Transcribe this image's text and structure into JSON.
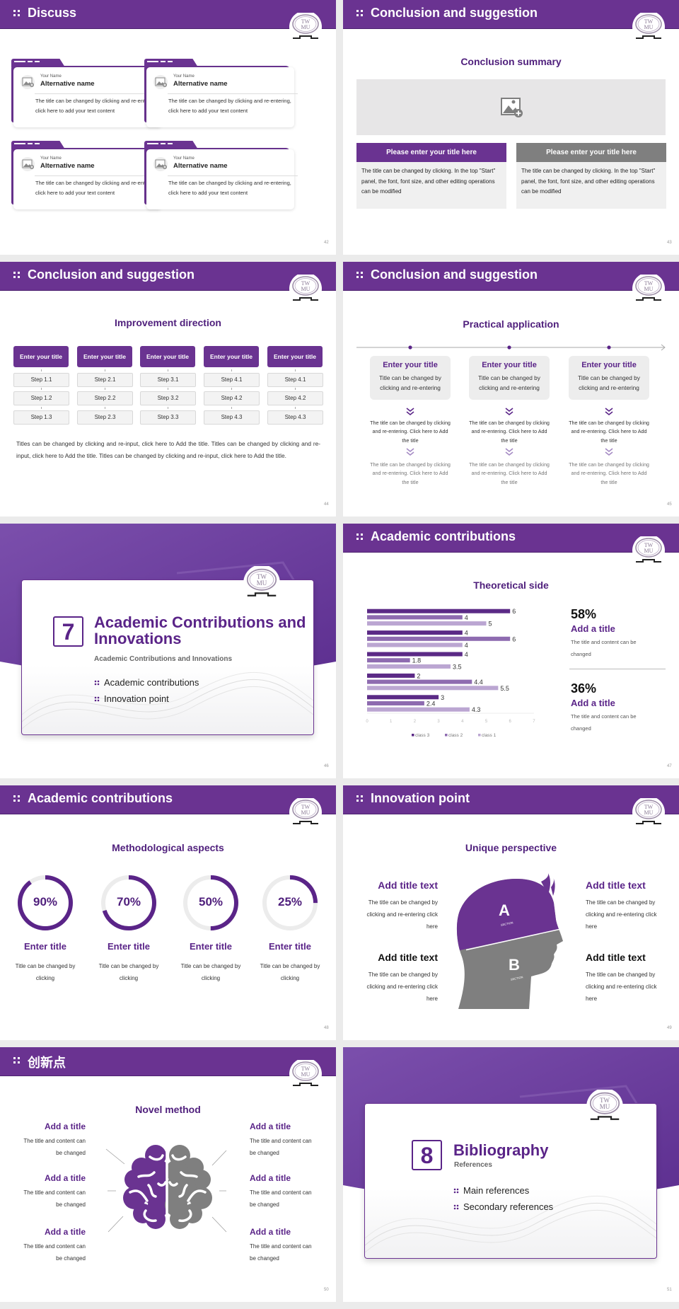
{
  "brand": {
    "logo_text_top": "TW",
    "logo_text_bottom": "MU",
    "colors": {
      "primary": "#6a3391",
      "dark": "#4f1f7c",
      "gray": "#7f7f7f",
      "light": "#f0f0f0"
    }
  },
  "s42": {
    "title": "Discuss",
    "page": "42",
    "cards": [
      {
        "label": "Your Name",
        "name": "Alternative name",
        "text": "The title can be changed by clicking and re-entering, click here to add your text content"
      },
      {
        "label": "Your Name",
        "name": "Alternative name",
        "text": "The title can be changed by clicking and re-entering, click here to add your text content"
      },
      {
        "label": "Your Name",
        "name": "Alternative name",
        "text": "The title can be changed by clicking and re-entering, click here to add your text content"
      },
      {
        "label": "Your Name",
        "name": "Alternative name",
        "text": "The title can be changed by clicking and re-entering, click here to add your text content"
      }
    ]
  },
  "s43": {
    "title": "Conclusion and suggestion",
    "page": "43",
    "heading": "Conclusion summary",
    "boxes": [
      {
        "title": "Please enter your title here",
        "text": "The title can be changed by clicking. In the top \"Start\" panel, the font, font size, and other editing operations can be modified",
        "color": "#6a3391"
      },
      {
        "title": "Please enter your title here",
        "text": "The title can be changed by clicking. In the top \"Start\" panel, the font, font size, and other editing operations can be modified",
        "color": "#7f7f7f"
      }
    ]
  },
  "s44": {
    "title": "Conclusion and suggestion",
    "page": "44",
    "heading": "Improvement direction",
    "columns": [
      {
        "title": "Enter your title",
        "steps": [
          "Step 1.1",
          "Step 1.2",
          "Step 1.3"
        ]
      },
      {
        "title": "Enter your title",
        "steps": [
          "Step 2.1",
          "Step 2.2",
          "Step 2.3"
        ]
      },
      {
        "title": "Enter your title",
        "steps": [
          "Step 3.1",
          "Step 3.2",
          "Step 3.3"
        ]
      },
      {
        "title": "Enter your title",
        "steps": [
          "Step 4.1",
          "Step 4.2",
          "Step 4.3"
        ]
      },
      {
        "title": "Enter your title",
        "steps": [
          "Step 4.1",
          "Step 4.2",
          "Step 4.3"
        ]
      }
    ],
    "paragraph": "Titles can be changed by clicking and re-input, click here to Add the title. Titles can be changed by clicking and re-input, click here to Add the title. Titles can be changed by clicking and re-input, click here to Add the title."
  },
  "s45": {
    "title": "Conclusion and suggestion",
    "page": "45",
    "heading": "Practical application",
    "items": [
      {
        "title": "Enter your title",
        "text": "Title can be changed by clicking and re-entering",
        "step1": "The title can be changed by clicking and re-entering. Click here to Add the title",
        "step2": "The title can be changed by clicking and re-entering. Click here to Add the title"
      },
      {
        "title": "Enter your title",
        "text": "Title can be changed by clicking and re-entering",
        "step1": "The title can be changed by clicking and re-entering. Click here to Add the title",
        "step2": "The title can be changed by clicking and re-entering. Click here to Add the title"
      },
      {
        "title": "Enter your title",
        "text": "Title can be changed by clicking and re-entering",
        "step1": "The title can be changed by clicking and re-entering. Click here to Add the title",
        "step2": "The title can be changed by clicking and re-entering. Click here to Add the title"
      }
    ]
  },
  "s46": {
    "page": "46",
    "number": "7",
    "title": "Academic Contributions and Innovations",
    "subtitle": "Academic Contributions and Innovations",
    "bullets": [
      "Academic contributions",
      "Innovation point"
    ]
  },
  "s47": {
    "title": "Academic contributions",
    "page": "47",
    "heading": "Theoretical side",
    "stats": [
      {
        "value": "58%",
        "title": "Add a title",
        "text": "The title and content can be changed"
      },
      {
        "value": "36%",
        "title": "Add a title",
        "text": "The title and content can be changed"
      }
    ]
  },
  "chart_data": {
    "type": "bar",
    "orientation": "horizontal",
    "title": "Theoretical side",
    "xlim": [
      0,
      7
    ],
    "xticks": [
      "0",
      "1",
      "2",
      "3",
      "4",
      "5",
      "6",
      "7"
    ],
    "grid": false,
    "legend": "bottom",
    "series": [
      {
        "name": "class 3",
        "color": "#5b2a86",
        "values": [
          6,
          4,
          4,
          2,
          3
        ]
      },
      {
        "name": "class 2",
        "color": "#8e6bb0",
        "values": [
          4,
          6,
          1.8,
          4.4,
          2.4
        ]
      },
      {
        "name": "class 1",
        "color": "#bba6d2",
        "values": [
          5,
          4,
          3.5,
          5.5,
          4.3
        ]
      }
    ]
  },
  "s48": {
    "title": "Academic contributions",
    "page": "48",
    "heading": "Methodological aspects",
    "rings": [
      {
        "percent": 90,
        "label": "90%",
        "title": "Enter title",
        "text": "Title can be changed by clicking"
      },
      {
        "percent": 70,
        "label": "70%",
        "title": "Enter title",
        "text": "Title can be changed by clicking"
      },
      {
        "percent": 50,
        "label": "50%",
        "title": "Enter title",
        "text": "Title can be changed by clicking"
      },
      {
        "percent": 25,
        "label": "25%",
        "title": "Enter title",
        "text": "Title can be changed by clicking"
      }
    ]
  },
  "s49": {
    "title": "Innovation point",
    "page": "49",
    "heading": "Unique perspective",
    "head": {
      "a": "A",
      "b": "B",
      "section": "SECTION"
    },
    "blocks": [
      {
        "title": "Add title text",
        "text": "The title can be changed by clicking and re-entering click here"
      },
      {
        "title": "Add title text",
        "text": "The title can be changed by clicking and re-entering click here"
      },
      {
        "title": "Add title text",
        "text": "The title can be changed by clicking and re-entering click here"
      },
      {
        "title": "Add title text",
        "text": "The title can be changed by clicking and re-entering click here"
      }
    ]
  },
  "s50": {
    "title": "创新点",
    "page": "50",
    "heading": "Novel method",
    "blocks": [
      {
        "title": "Add a title",
        "text": "The title and content can be changed"
      },
      {
        "title": "Add a title",
        "text": "The title and content can be changed"
      },
      {
        "title": "Add a title",
        "text": "The title and content can be changed"
      },
      {
        "title": "Add a title",
        "text": "The title and content can be changed"
      },
      {
        "title": "Add a title",
        "text": "The title and content can be changed"
      },
      {
        "title": "Add a title",
        "text": "The title and content can be changed"
      }
    ]
  },
  "s51": {
    "page": "51",
    "number": "8",
    "title": "Bibliography",
    "subtitle": "References",
    "bullets": [
      "Main references",
      "Secondary references"
    ]
  }
}
